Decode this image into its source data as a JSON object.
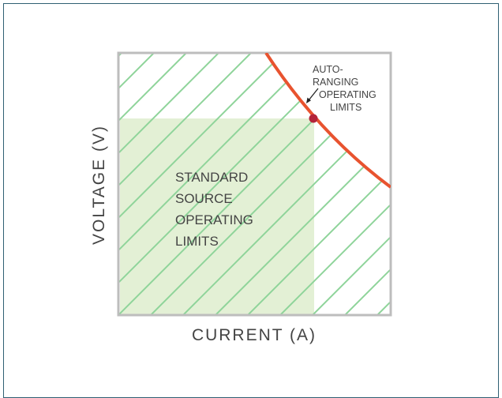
{
  "diagram": {
    "y_axis_label": "VOLTAGE (V)",
    "x_axis_label": "CURRENT (A)",
    "region_label": [
      "STANDARD",
      "SOURCE",
      "OPERATING",
      "LIMITS"
    ],
    "curve_label": [
      "AUTO-",
      "RANGING",
      "OPERATING",
      "LIMITS"
    ]
  },
  "colors": {
    "border": "#2f5f73",
    "axes": "#bdbdbd",
    "hatch": "#8fd49a",
    "standard_fill": "#e3f0d5",
    "curve": "#e8532f",
    "point": "#b3243a",
    "text": "#444444"
  }
}
